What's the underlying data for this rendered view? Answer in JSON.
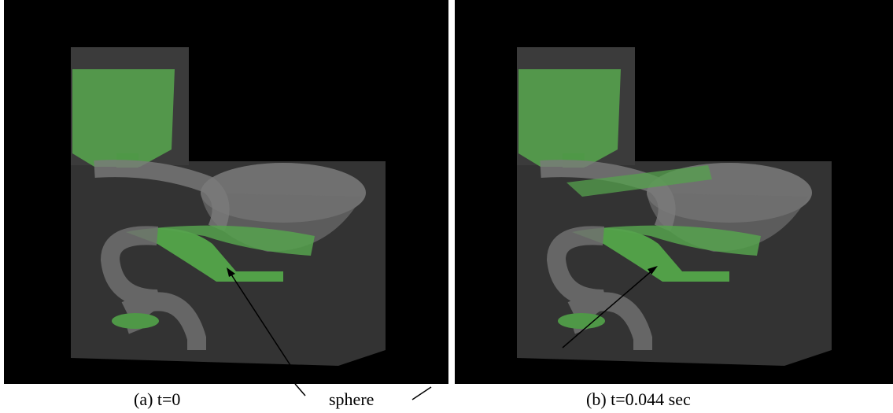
{
  "panels": [
    {
      "caption": "(a) t=0"
    },
    {
      "caption": "(b) t=0.044 sec"
    }
  ],
  "annotation": "sphere"
}
